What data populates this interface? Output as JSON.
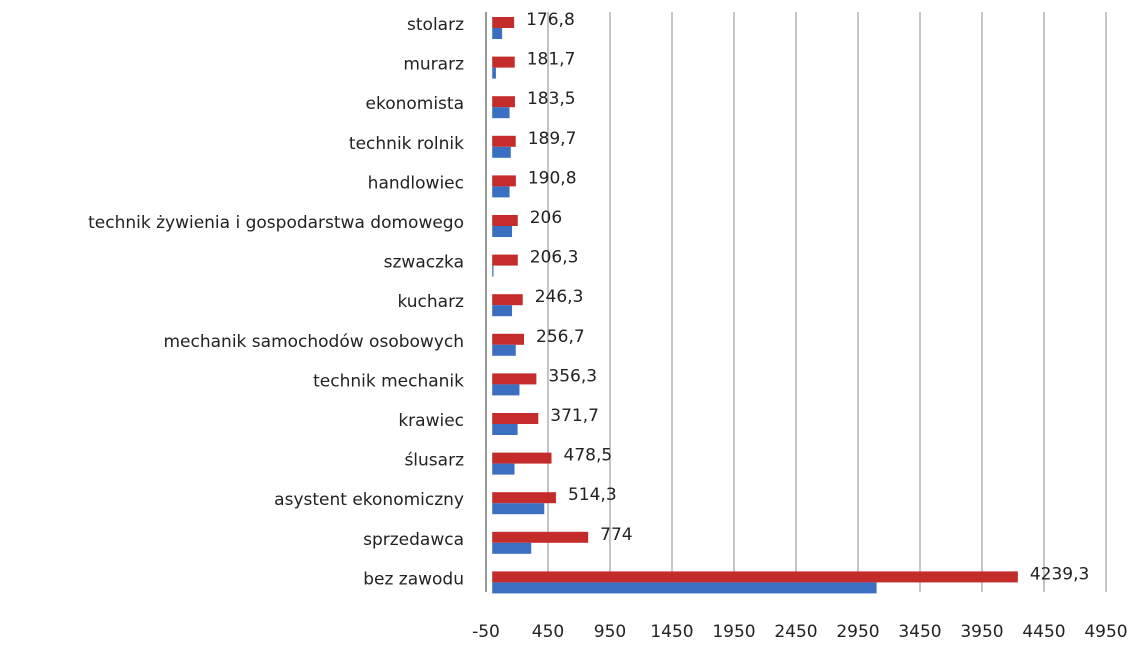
{
  "chart_data": {
    "type": "bar",
    "orientation": "horizontal",
    "categories": [
      "stolarz",
      "murarz",
      "ekonomista",
      "technik rolnik",
      "handlowiec",
      "technik żywienia i gospodarstwa domowego",
      "szwaczka",
      "kucharz",
      "mechanik samochodów osobowych",
      "technik mechanik",
      "krawiec",
      "ślusarz",
      "asystent ekonomiczny",
      "sprzedawca",
      "bez zawodu"
    ],
    "series": [
      {
        "color": "#c42b2b",
        "values": [
          176.8,
          181.7,
          183.5,
          189.7,
          190.8,
          206,
          206.3,
          246.3,
          256.7,
          356.3,
          371.7,
          478.5,
          514.3,
          774,
          4239.3
        ],
        "value_labels": [
          "176,8",
          "181,7",
          "183,5",
          "189,7",
          "190,8",
          "206",
          "206,3",
          "246,3",
          "256,7",
          "356,3",
          "371,7",
          "478,5",
          "514,3",
          "774",
          "4239,3"
        ]
      },
      {
        "color": "#3b6fc2",
        "values": [
          80,
          30,
          140,
          150,
          140,
          160,
          10,
          160,
          190,
          220,
          205,
          180,
          420,
          315,
          3100
        ]
      }
    ],
    "xlim": [
      -50,
      4950
    ],
    "xticks": [
      -50,
      450,
      950,
      1450,
      1950,
      2450,
      2950,
      3450,
      3950,
      4450,
      4950
    ],
    "grid": true
  }
}
